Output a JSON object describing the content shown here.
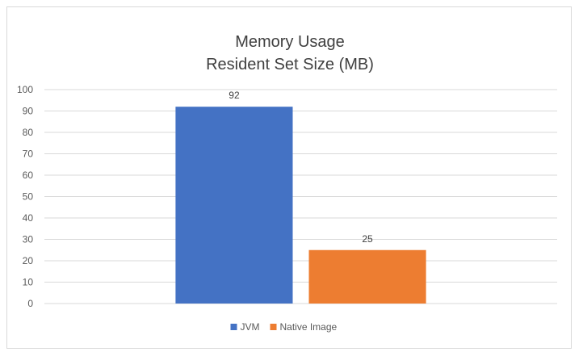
{
  "chart_data": {
    "type": "bar",
    "title": "Memory Usage",
    "subtitle": "Resident Set Size (MB)",
    "xlabel": "",
    "ylabel": "",
    "ylim": [
      0,
      100
    ],
    "ytick_step": 10,
    "grid": true,
    "legend_position": "bottom",
    "series": [
      {
        "name": "JVM",
        "value": 92,
        "color": "#4472C4"
      },
      {
        "name": "Native Image",
        "value": 25,
        "color": "#ED7D31"
      }
    ]
  }
}
